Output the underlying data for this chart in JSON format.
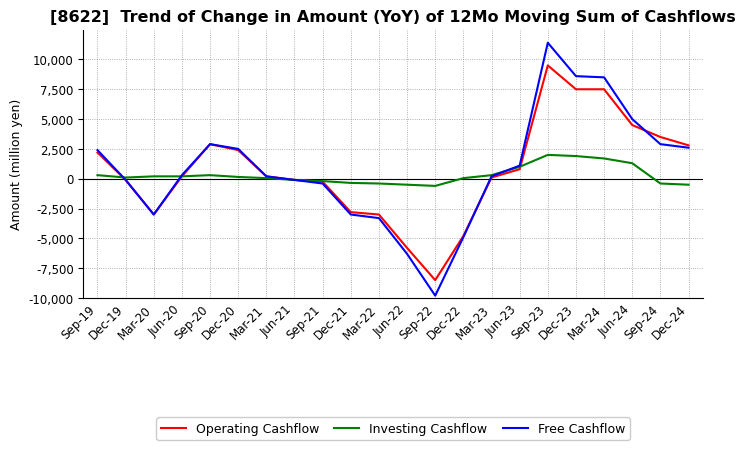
{
  "title": "[8622]  Trend of Change in Amount (YoY) of 12Mo Moving Sum of Cashflows",
  "ylabel": "Amount (million yen)",
  "x_labels": [
    "Sep-19",
    "Dec-19",
    "Mar-20",
    "Jun-20",
    "Sep-20",
    "Dec-20",
    "Mar-21",
    "Jun-21",
    "Sep-21",
    "Dec-21",
    "Mar-22",
    "Jun-22",
    "Sep-22",
    "Dec-22",
    "Mar-23",
    "Jun-23",
    "Sep-23",
    "Dec-23",
    "Mar-24",
    "Jun-24",
    "Sep-24",
    "Dec-24"
  ],
  "operating_cashflow": [
    2200,
    -100,
    -3000,
    200,
    2900,
    2400,
    200,
    -100,
    -250,
    -2800,
    -3000,
    -5800,
    -8500,
    -4800,
    100,
    800,
    9500,
    7500,
    7500,
    4500,
    3500,
    2800
  ],
  "investing_cashflow": [
    300,
    100,
    200,
    200,
    300,
    150,
    50,
    -100,
    -200,
    -350,
    -400,
    -500,
    -600,
    50,
    300,
    1000,
    2000,
    1900,
    1700,
    1300,
    -400,
    -500
  ],
  "free_cashflow": [
    2400,
    -100,
    -3000,
    300,
    2900,
    2500,
    200,
    -100,
    -400,
    -3000,
    -3300,
    -6300,
    -9800,
    -4900,
    200,
    1100,
    11400,
    8600,
    8500,
    5000,
    2900,
    2600
  ],
  "line_colors": {
    "operating": "#FF0000",
    "investing": "#008000",
    "free": "#0000FF"
  },
  "legend_labels": [
    "Operating Cashflow",
    "Investing Cashflow",
    "Free Cashflow"
  ],
  "ylim": [
    -10000,
    12500
  ],
  "yticks": [
    -10000,
    -7500,
    -5000,
    -2500,
    0,
    2500,
    5000,
    7500,
    10000
  ],
  "background_color": "#FFFFFF",
  "plot_bg_color": "#FFFFFF",
  "grid_color": "#999999",
  "title_fontsize": 11.5,
  "label_fontsize": 9,
  "tick_fontsize": 8.5
}
